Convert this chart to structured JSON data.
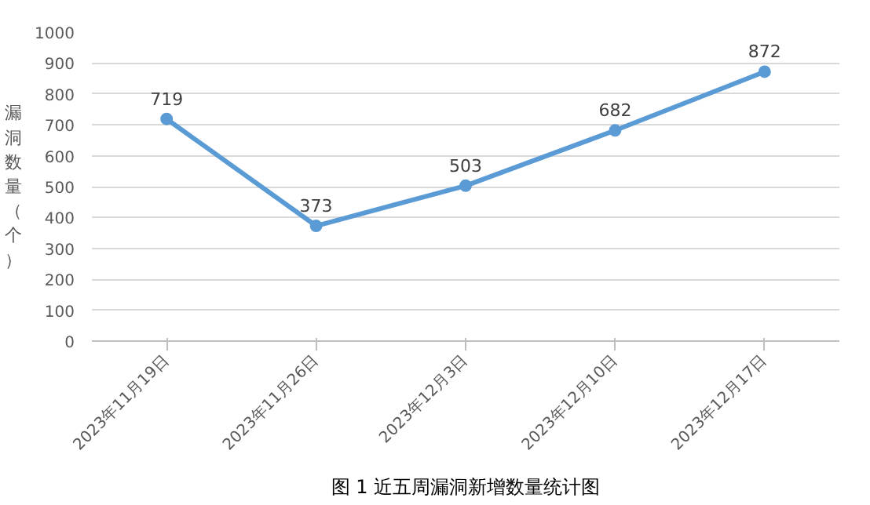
{
  "chart_data": {
    "type": "line",
    "title": "图 1 近五周漏洞新增数量统计图",
    "ylabel": "漏洞数量（个）",
    "categories": [
      "2023年11月19日",
      "2023年11月26日",
      "2023年12月3日",
      "2023年12月10日",
      "2023年12月17日"
    ],
    "series": [
      {
        "color": "#5b9bd5",
        "values": [
          719,
          373,
          503,
          682,
          872
        ]
      }
    ],
    "ylim": [
      0,
      1000
    ],
    "yticks": [
      0,
      100,
      200,
      300,
      400,
      500,
      600,
      700,
      800,
      900,
      1000
    ],
    "grid": "y",
    "marker": "circle",
    "line_style": "solid",
    "data_labels": true
  }
}
